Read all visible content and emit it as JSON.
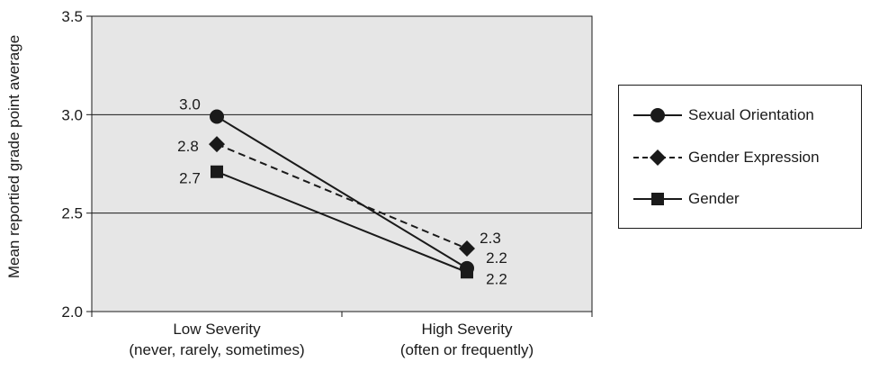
{
  "chart_data": {
    "type": "line",
    "title": "",
    "xlabel": "",
    "ylabel": "Mean reportied grade point average",
    "ylim": [
      2.0,
      3.5
    ],
    "yticks": [
      "2.0",
      "2.5",
      "3.0",
      "3.5"
    ],
    "grid": true,
    "legend_position": "right",
    "plot_background": "#e6e6e6",
    "categories": [
      [
        "Low Severity",
        "(never, rarely, sometimes)"
      ],
      [
        "High Severity",
        "(often or frequently)"
      ]
    ],
    "series": [
      {
        "name": "Sexual Orientation",
        "marker": "circle",
        "dash": "solid",
        "values": [
          2.99,
          2.22
        ],
        "labels": [
          "3.0",
          "2.2"
        ]
      },
      {
        "name": "Gender Expression",
        "marker": "diamond",
        "dash": "dashed",
        "values": [
          2.85,
          2.32
        ],
        "labels": [
          "2.8",
          "2.3"
        ]
      },
      {
        "name": "Gender",
        "marker": "square",
        "dash": "solid",
        "values": [
          2.71,
          2.2
        ],
        "labels": [
          "2.7",
          "2.2"
        ]
      }
    ]
  }
}
